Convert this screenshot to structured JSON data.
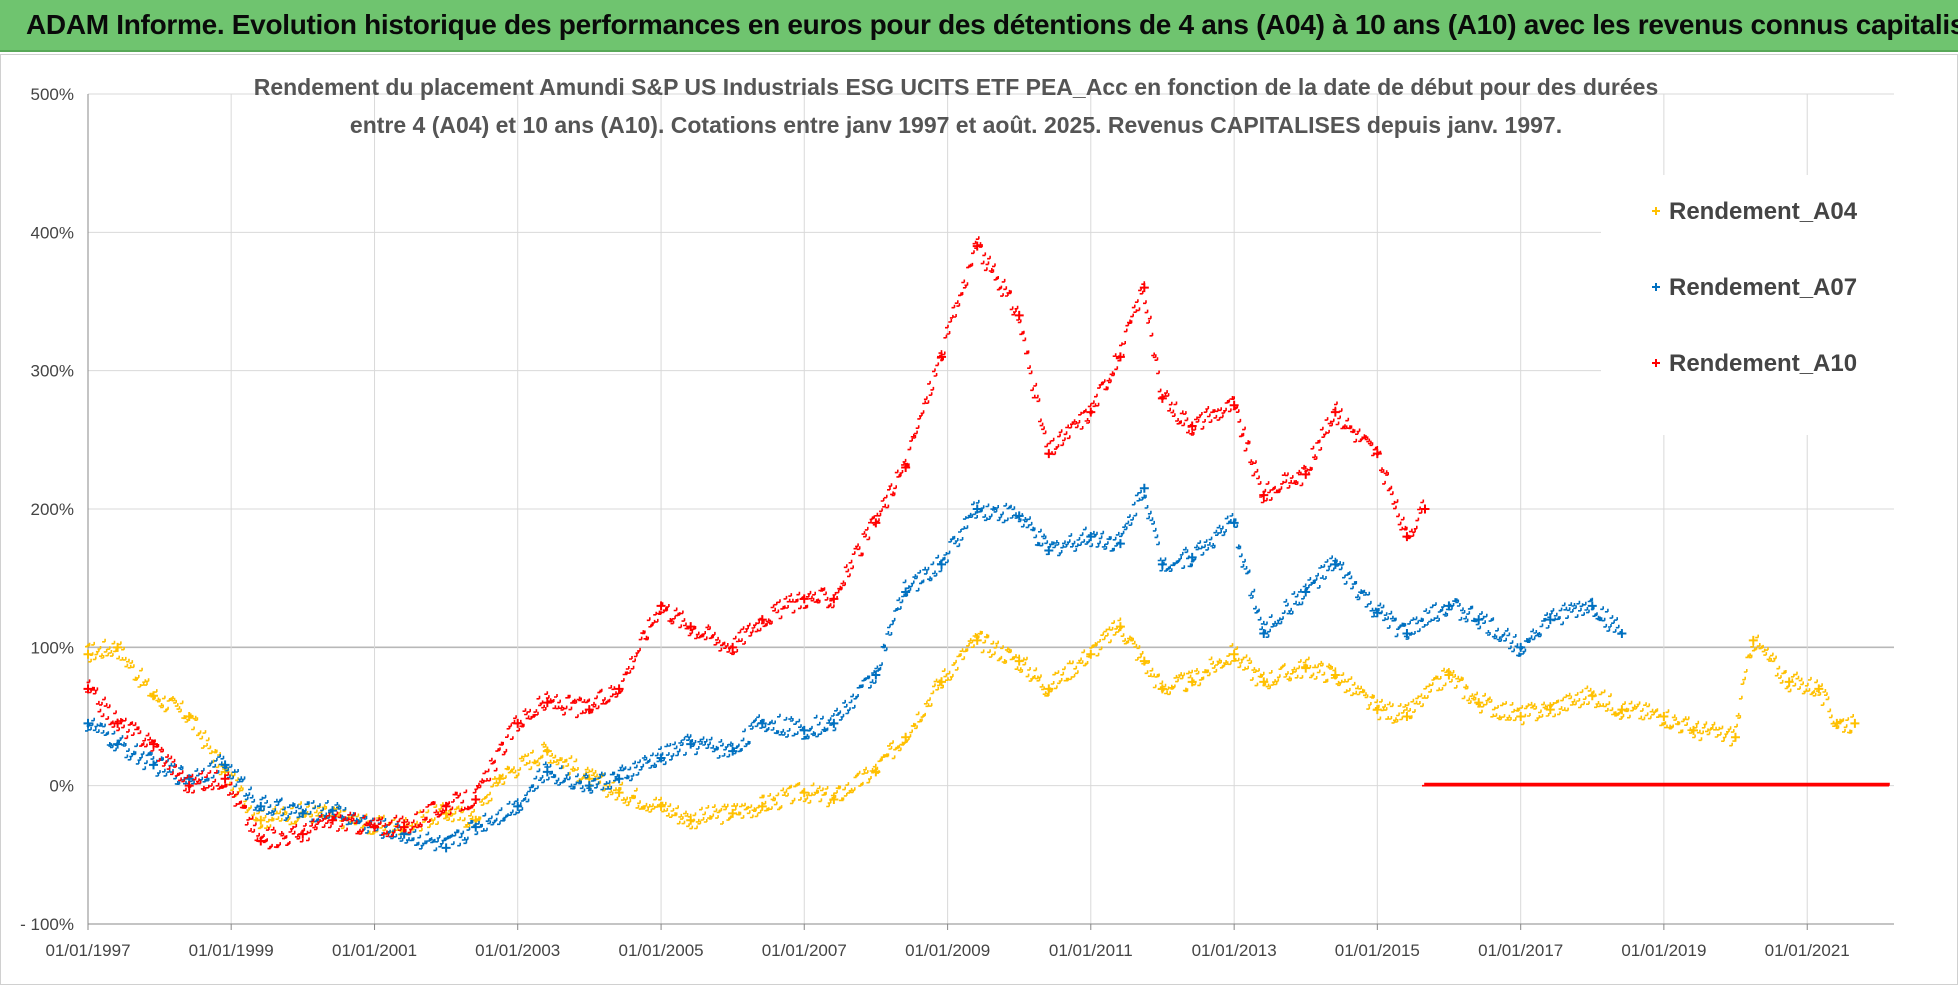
{
  "banner": {
    "title": "ADAM Informe. Evolution historique des performances en euros pour des détentions de 4 ans (A04) à 10 ans (A10) avec les revenus connus capitalisés"
  },
  "chart_data": {
    "type": "scatter",
    "title_lines": [
      "Rendement du placement Amundi S&P US Industrials ESG UCITS ETF PEA_Acc en fonction de la date de début pour des durées",
      "entre 4 (A04) et 10 ans (A10). Cotations entre janv 1997 et août. 2025. Revenus CAPITALISES depuis janv. 1997."
    ],
    "xlabel": "",
    "ylabel": "",
    "x_range": [
      "1997-01-01",
      "2022-03-01"
    ],
    "x_tick_labels": [
      "01/01/1997",
      "01/01/1999",
      "01/01/2001",
      "01/01/2003",
      "01/01/2005",
      "01/01/2007",
      "01/01/2009",
      "01/01/2011",
      "01/01/2013",
      "01/01/2015",
      "01/01/2017",
      "01/01/2019",
      "01/01/2021"
    ],
    "y_range": [
      -100,
      500
    ],
    "y_tick_values": [
      -100,
      0,
      100,
      200,
      300,
      400,
      500
    ],
    "y_tick_labels": [
      "- 100%",
      "0%",
      "100%",
      "200%",
      "300%",
      "400%",
      "500%"
    ],
    "grid": true,
    "marker": "plus",
    "legend_position": "top-right",
    "series": [
      {
        "name": "Rendement_A04",
        "color": "#ffc000",
        "points": [
          [
            "1997-01-01",
            95
          ],
          [
            "1997-06-01",
            100
          ],
          [
            "1997-12-01",
            65
          ],
          [
            "1998-06-01",
            50
          ],
          [
            "1998-12-01",
            10
          ],
          [
            "1999-06-01",
            -25
          ],
          [
            "2000-01-01",
            -20
          ],
          [
            "2000-06-01",
            -22
          ],
          [
            "2001-01-01",
            -30
          ],
          [
            "2001-06-01",
            -30
          ],
          [
            "2002-01-01",
            -20
          ],
          [
            "2002-06-01",
            -25
          ],
          [
            "2002-10-01",
            5
          ],
          [
            "2003-06-01",
            25
          ],
          [
            "2004-01-01",
            5
          ],
          [
            "2004-06-01",
            -5
          ],
          [
            "2005-01-01",
            -15
          ],
          [
            "2005-06-01",
            -25
          ],
          [
            "2006-01-01",
            -20
          ],
          [
            "2006-06-01",
            -15
          ],
          [
            "2007-01-01",
            -5
          ],
          [
            "2007-06-01",
            -10
          ],
          [
            "2008-01-01",
            10
          ],
          [
            "2008-06-01",
            35
          ],
          [
            "2008-12-01",
            75
          ],
          [
            "2009-06-01",
            105
          ],
          [
            "2010-01-01",
            90
          ],
          [
            "2010-06-01",
            70
          ],
          [
            "2011-01-01",
            95
          ],
          [
            "2011-06-01",
            115
          ],
          [
            "2011-10-01",
            90
          ],
          [
            "2012-01-01",
            70
          ],
          [
            "2012-06-01",
            75
          ],
          [
            "2013-01-01",
            95
          ],
          [
            "2013-06-01",
            75
          ],
          [
            "2014-01-01",
            85
          ],
          [
            "2014-06-01",
            80
          ],
          [
            "2015-01-01",
            55
          ],
          [
            "2015-06-01",
            50
          ],
          [
            "2016-01-01",
            80
          ],
          [
            "2016-06-01",
            60
          ],
          [
            "2017-01-01",
            50
          ],
          [
            "2017-06-01",
            55
          ],
          [
            "2018-01-01",
            65
          ],
          [
            "2018-06-01",
            55
          ],
          [
            "2019-01-01",
            50
          ],
          [
            "2019-06-01",
            40
          ],
          [
            "2020-01-01",
            35
          ],
          [
            "2020-04-01",
            105
          ],
          [
            "2020-10-01",
            75
          ],
          [
            "2021-03-01",
            70
          ],
          [
            "2021-06-01",
            45
          ],
          [
            "2021-09-01",
            45
          ]
        ]
      },
      {
        "name": "Rendement_A07",
        "color": "#0070c0",
        "points": [
          [
            "1997-01-01",
            45
          ],
          [
            "1997-06-01",
            30
          ],
          [
            "1997-12-01",
            15
          ],
          [
            "1998-06-01",
            5
          ],
          [
            "1998-12-01",
            15
          ],
          [
            "1999-06-01",
            -15
          ],
          [
            "2000-01-01",
            -20
          ],
          [
            "2000-06-01",
            -18
          ],
          [
            "2001-01-01",
            -30
          ],
          [
            "2001-06-01",
            -35
          ],
          [
            "2002-01-01",
            -45
          ],
          [
            "2002-06-01",
            -30
          ],
          [
            "2003-01-01",
            -15
          ],
          [
            "2003-06-01",
            10
          ],
          [
            "2004-01-01",
            0
          ],
          [
            "2004-06-01",
            5
          ],
          [
            "2005-01-01",
            20
          ],
          [
            "2005-06-01",
            30
          ],
          [
            "2006-01-01",
            25
          ],
          [
            "2006-06-01",
            45
          ],
          [
            "2007-01-01",
            40
          ],
          [
            "2007-06-01",
            45
          ],
          [
            "2008-01-01",
            80
          ],
          [
            "2008-06-01",
            140
          ],
          [
            "2008-12-01",
            160
          ],
          [
            "2009-06-01",
            200
          ],
          [
            "2010-01-01",
            195
          ],
          [
            "2010-06-01",
            170
          ],
          [
            "2011-01-01",
            180
          ],
          [
            "2011-06-01",
            175
          ],
          [
            "2011-10-01",
            215
          ],
          [
            "2012-01-01",
            160
          ],
          [
            "2012-06-01",
            165
          ],
          [
            "2013-01-01",
            190
          ],
          [
            "2013-06-01",
            110
          ],
          [
            "2014-01-01",
            140
          ],
          [
            "2014-06-01",
            160
          ],
          [
            "2015-01-01",
            125
          ],
          [
            "2015-06-01",
            110
          ],
          [
            "2016-01-01",
            130
          ],
          [
            "2016-06-01",
            120
          ],
          [
            "2017-01-01",
            100
          ],
          [
            "2017-06-01",
            120
          ],
          [
            "2018-01-01",
            130
          ],
          [
            "2018-06-01",
            110
          ]
        ]
      },
      {
        "name": "Rendement_A10",
        "color": "#ff0000",
        "points": [
          [
            "1997-01-01",
            70
          ],
          [
            "1997-06-01",
            45
          ],
          [
            "1997-12-01",
            30
          ],
          [
            "1998-06-01",
            0
          ],
          [
            "1998-12-01",
            5
          ],
          [
            "1999-06-01",
            -40
          ],
          [
            "2000-01-01",
            -35
          ],
          [
            "2000-06-01",
            -25
          ],
          [
            "2001-01-01",
            -30
          ],
          [
            "2001-06-01",
            -30
          ],
          [
            "2002-01-01",
            -15
          ],
          [
            "2002-06-01",
            -10
          ],
          [
            "2003-01-01",
            45
          ],
          [
            "2003-06-01",
            60
          ],
          [
            "2004-01-01",
            55
          ],
          [
            "2004-06-01",
            70
          ],
          [
            "2005-01-01",
            130
          ],
          [
            "2005-06-01",
            115
          ],
          [
            "2006-01-01",
            100
          ],
          [
            "2006-06-01",
            120
          ],
          [
            "2007-01-01",
            135
          ],
          [
            "2007-06-01",
            135
          ],
          [
            "2008-01-01",
            190
          ],
          [
            "2008-06-01",
            230
          ],
          [
            "2008-12-01",
            310
          ],
          [
            "2009-06-01",
            390
          ],
          [
            "2010-01-01",
            340
          ],
          [
            "2010-06-01",
            240
          ],
          [
            "2011-01-01",
            270
          ],
          [
            "2011-06-01",
            310
          ],
          [
            "2011-10-01",
            360
          ],
          [
            "2012-01-01",
            280
          ],
          [
            "2012-06-01",
            260
          ],
          [
            "2013-01-01",
            275
          ],
          [
            "2013-06-01",
            210
          ],
          [
            "2014-01-01",
            225
          ],
          [
            "2014-06-01",
            270
          ],
          [
            "2015-01-01",
            240
          ],
          [
            "2015-06-01",
            180
          ],
          [
            "2015-09-01",
            200
          ]
        ],
        "flat_zero_range": [
          "2015-09-01",
          "2022-03-01"
        ]
      }
    ]
  }
}
